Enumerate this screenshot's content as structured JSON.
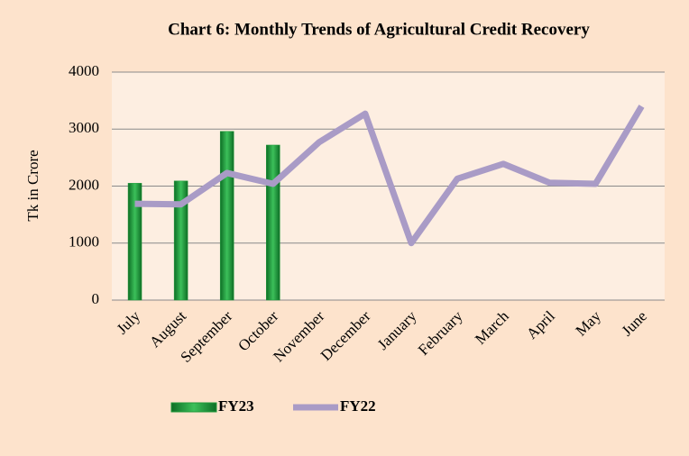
{
  "chart_data": {
    "type": "combo",
    "title": "Chart 6: Monthly Trends of Agricultural Credit Recovery",
    "y_label": "Tk in  Crore",
    "categories": [
      "July",
      "August",
      "September",
      "October",
      "November",
      "December",
      "January",
      "February",
      "March",
      "April",
      "May",
      "June"
    ],
    "series": [
      {
        "name": "FY23",
        "type": "bar",
        "color": "#1f9a3a",
        "values": [
          2050,
          2090,
          2960,
          2720,
          null,
          null,
          null,
          null,
          null,
          null,
          null,
          null
        ]
      },
      {
        "name": "FY22",
        "type": "line",
        "color": "#a99bc6",
        "values": [
          1690,
          1680,
          2230,
          2040,
          2770,
          3270,
          1000,
          2130,
          2390,
          2060,
          2040,
          3400
        ]
      }
    ],
    "ylim": [
      0,
      4000
    ],
    "yticks": [
      0,
      1000,
      2000,
      3000,
      4000
    ],
    "grid": true,
    "legend": "bottom"
  }
}
